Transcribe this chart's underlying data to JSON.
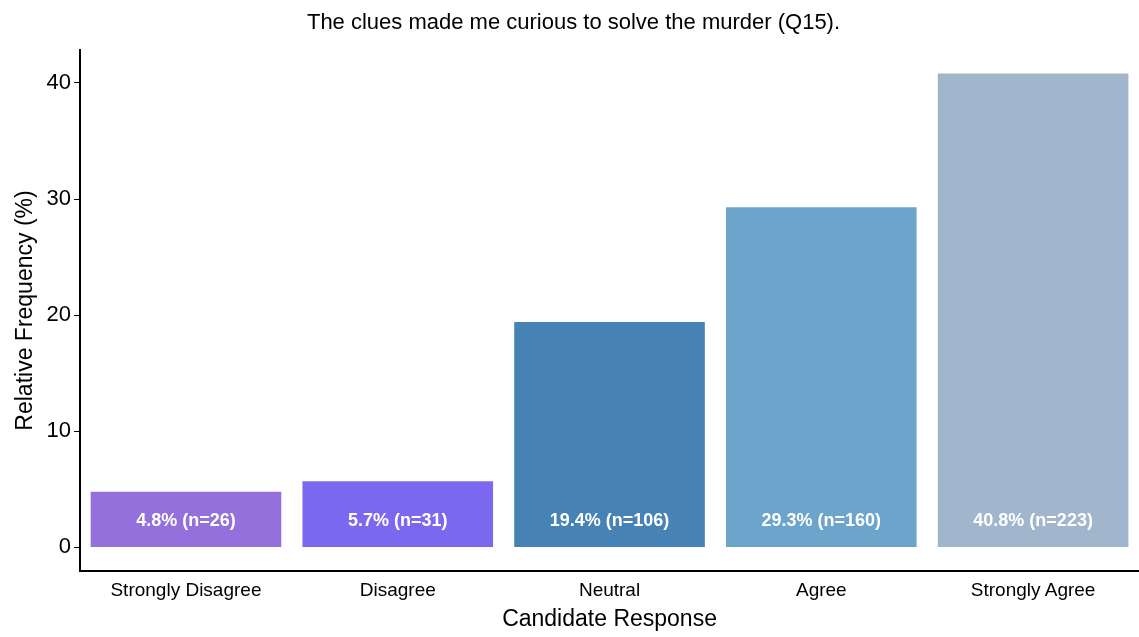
{
  "chart_data": {
    "type": "bar",
    "title": "The clues made me curious to solve the murder (Q15).",
    "xlabel": "Candidate Response",
    "ylabel": "Relative Frequency (%)",
    "categories": [
      "Strongly Disagree",
      "Disagree",
      "Neutral",
      "Agree",
      "Strongly Agree"
    ],
    "values": [
      4.8,
      5.7,
      19.4,
      29.3,
      40.8
    ],
    "colors": [
      "#9370db",
      "#7b68ee",
      "#4682b4",
      "#6ca5cb",
      "#a1b6cc"
    ],
    "value_labels": [
      "4.8% (n=26)",
      "5.7% (n=31)",
      "19.4% (n=106)",
      "29.3% (n=160)",
      "40.8% (n=223)"
    ],
    "ylim": [
      -2,
      42.8
    ],
    "yticks": [
      0,
      10,
      20,
      30,
      40
    ],
    "grid": false,
    "legend": false
  }
}
